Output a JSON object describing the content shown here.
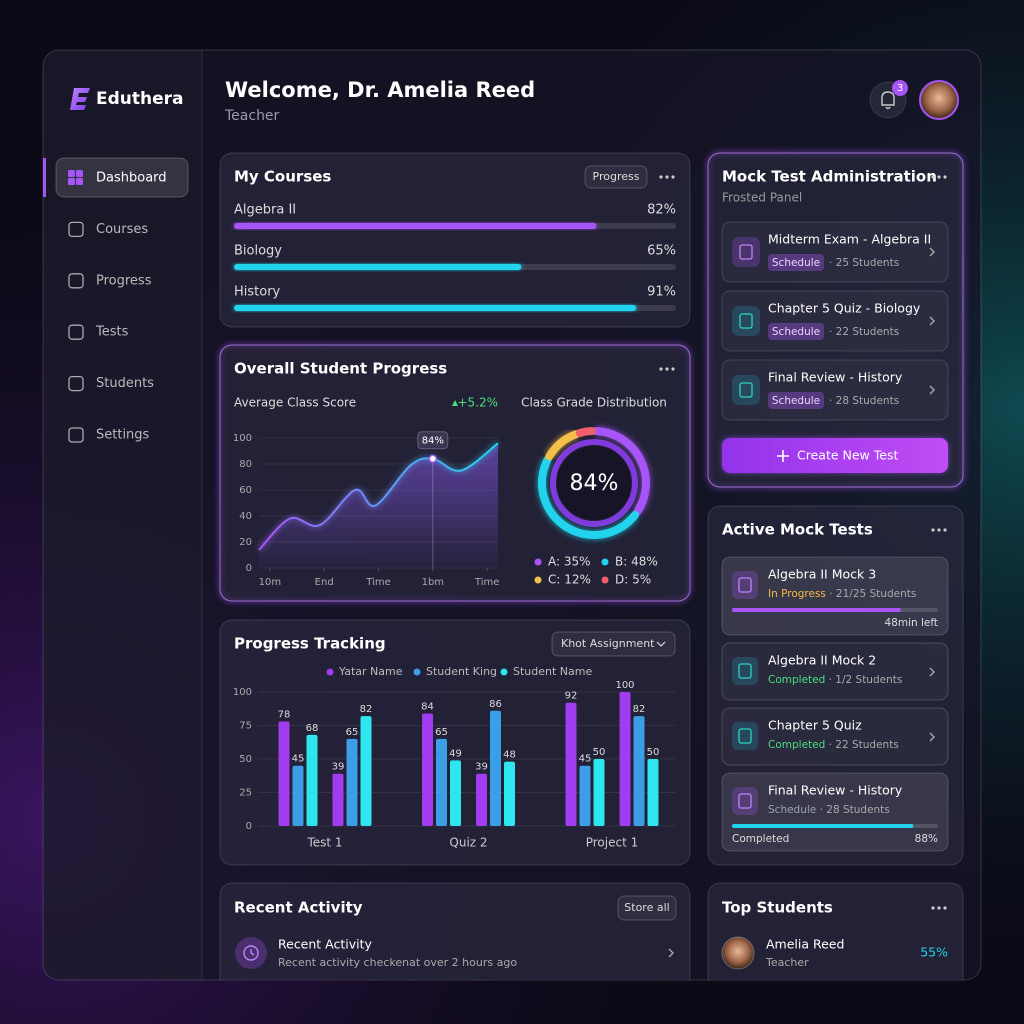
{
  "brand": "Eduthera",
  "nav": [
    {
      "label": "Dashboard",
      "active": true
    },
    {
      "label": "Courses"
    },
    {
      "label": "Progress"
    },
    {
      "label": "Tests"
    },
    {
      "label": "Students"
    },
    {
      "label": "Settings"
    }
  ],
  "header": {
    "title": "Welcome, Dr. Amelia Reed",
    "subtitle": "Teacher",
    "notification_count": 3
  },
  "my_courses": {
    "title": "My Courses",
    "button": "Progress",
    "items": [
      {
        "name": "Algebra II",
        "value": 82,
        "value_label": "82%",
        "color": "#a855f7"
      },
      {
        "name": "Biology",
        "value": 65,
        "value_label": "65%",
        "color": "#22d3ee"
      },
      {
        "name": "History",
        "value": 91,
        "value_label": "91%",
        "color": "#22d3ee"
      }
    ]
  },
  "student_progress": {
    "title": "Overall Student Progress",
    "line_chart": {
      "type": "area",
      "title": "Average Class Score",
      "change": "+5.2%",
      "color": "#a855f7",
      "x": [
        -0.2,
        0.37,
        0.92,
        1.57,
        1.94,
        2.59,
        3,
        3.52,
        4.2
      ],
      "values": [
        14,
        38,
        33,
        60,
        48,
        79,
        84,
        75,
        96
      ],
      "value_labels": [
        null,
        null,
        null,
        null,
        null,
        null,
        "84%",
        null,
        null
      ],
      "xlim": [
        -0.2,
        4.2
      ],
      "xticks": [
        {
          "value": 0,
          "label": "10m"
        },
        {
          "value": 1,
          "label": "End"
        },
        {
          "value": 2,
          "label": "Time"
        },
        {
          "value": 3,
          "label": "1bm"
        },
        {
          "value": 4,
          "label": "Time"
        }
      ],
      "ylim": [
        0,
        100
      ],
      "yticks": [
        0,
        20,
        40,
        60,
        80,
        100
      ],
      "grid": true
    },
    "donut": {
      "type": "donut",
      "title": "Class Grade Distribution",
      "center_label": "84%",
      "categories": [
        "A",
        "B",
        "C",
        "D"
      ],
      "values": [
        35,
        48,
        12,
        5
      ],
      "value_labels": [
        "A: 35%",
        "B: 48%",
        "C: 12%",
        "D: 5%"
      ],
      "colors": [
        "#a855f7",
        "#22d3ee",
        "#f5c04a",
        "#f0606a"
      ]
    }
  },
  "progress_tracking": {
    "type": "bar",
    "title": "Progress Tracking",
    "dropdown": "Khot Assignment",
    "categories": [
      "Test 1",
      null,
      "Quiz 2",
      null,
      "Project 1",
      null
    ],
    "series": [
      {
        "name": "Yatar Name",
        "color": "#a23cf0",
        "values": [
          78,
          39,
          84,
          39,
          92,
          100
        ]
      },
      {
        "name": "Student King",
        "color": "#3b9ee6",
        "values": [
          45,
          65,
          65,
          86,
          45,
          82
        ]
      },
      {
        "name": "Student Name",
        "color": "#2ee6f0",
        "values": [
          68,
          82,
          49,
          48,
          50,
          50
        ]
      }
    ],
    "ylim": [
      0,
      100
    ],
    "yticks": [
      0,
      25,
      50,
      75,
      100
    ],
    "grid": true
  },
  "recent_activity": {
    "title": "Recent Activity",
    "button": "Store all",
    "items": [
      {
        "title": "Recent Activity",
        "text": "Recent activity checkenat over 2 hours ago"
      }
    ]
  },
  "mock_admin": {
    "title": "Mock Test Administration",
    "subtitle": "Frosted Panel",
    "button": "Create New Test",
    "items": [
      {
        "title": "Midterm Exam - Algebra II",
        "tag": "Schedule",
        "detail": "· 25 Students"
      },
      {
        "title": "Chapter 5 Quiz - Biology",
        "tag": "Schedule",
        "detail": "· 22 Students"
      },
      {
        "title": "Final Review - History",
        "tag": "Schedule",
        "detail": "· 28 Students"
      }
    ]
  },
  "active_tests": {
    "title": "Active Mock Tests",
    "items": [
      {
        "title": "Algebra II Mock 3",
        "status": "In Progress",
        "status_color": "#f5b942",
        "detail": " · 21/25 Students",
        "progress": 82,
        "progress_color": "#a855f7",
        "note": "48min left"
      },
      {
        "title": "Algebra II Mock 2",
        "status": "Completed",
        "status_color": "#4ade80",
        "detail": " · 1/2 Students"
      },
      {
        "title": "Chapter 5 Quiz",
        "status": "Completed",
        "status_color": "#4ade80",
        "detail": " · 22 Students"
      },
      {
        "title": "Final Review - History",
        "status": "Schedule",
        "status_color": "#9ca3af",
        "detail": " · 28 Students",
        "progress": 88,
        "progress_label": "88%",
        "progress_color": "#22d3ee",
        "note": "Completed"
      }
    ]
  },
  "top_students": {
    "title": "Top Students",
    "items": [
      {
        "name": "Amelia Reed",
        "role": "Teacher",
        "score": "55%"
      }
    ]
  }
}
